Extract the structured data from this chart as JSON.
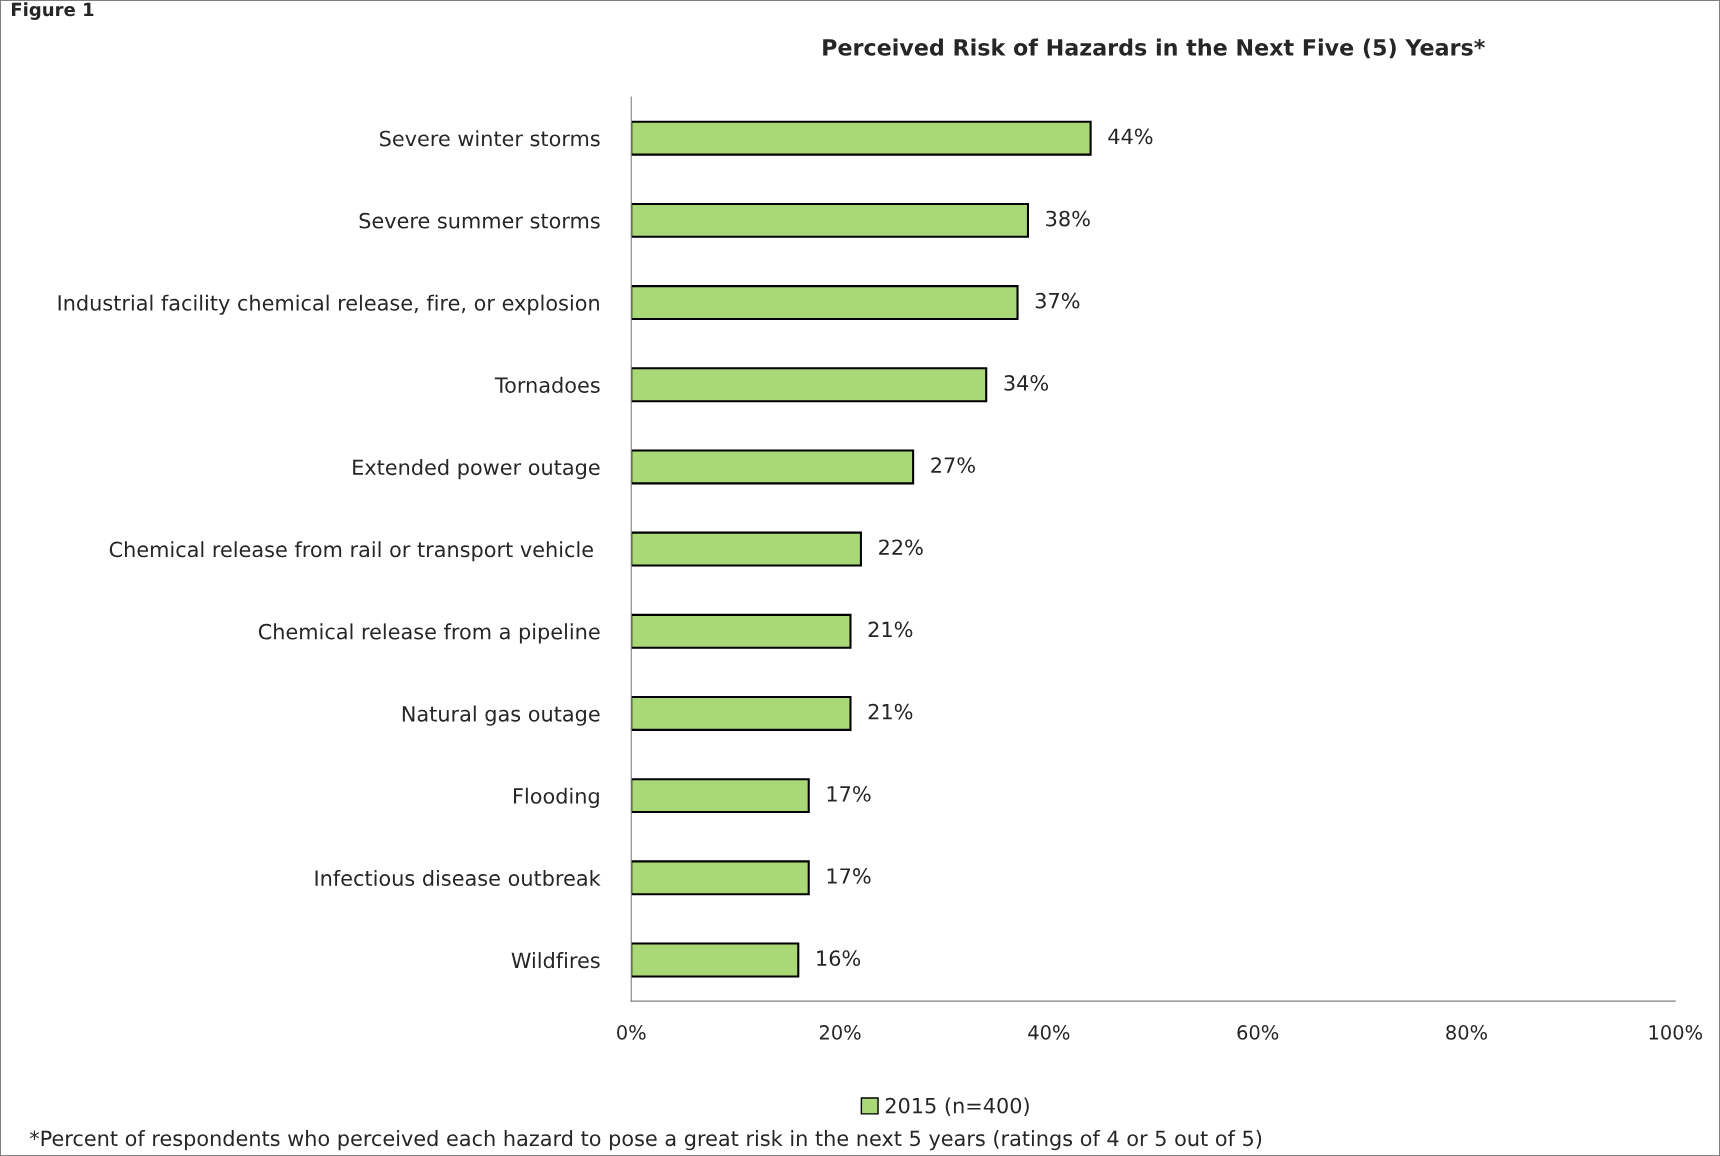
{
  "chart_data": {
    "type": "bar",
    "orientation": "horizontal",
    "title": "Perceived Risk of Hazards in the Next Five (5) Years*",
    "categories": [
      "Severe winter storms",
      "Severe summer storms",
      "Industrial facility chemical release, fire, or explosion",
      "Tornadoes",
      "Extended power outage",
      "Chemical release from rail or transport vehicle ",
      "Chemical release from a pipeline",
      "Natural gas outage",
      "Flooding",
      "Infectious disease outbreak",
      "Wildfires"
    ],
    "series": [
      {
        "name": "2015 (n=400)",
        "color": "#a9d977",
        "values": [
          44,
          38,
          37,
          34,
          27,
          22,
          21,
          21,
          17,
          17,
          16
        ],
        "value_labels": [
          "44%",
          "38%",
          "37%",
          "34%",
          "27%",
          "22%",
          "21%",
          "21%",
          "17%",
          "17%",
          "16%"
        ]
      }
    ],
    "xlim": [
      0,
      100
    ],
    "xticks": [
      {
        "value": 0,
        "label": "0%"
      },
      {
        "value": 20,
        "label": "20%"
      },
      {
        "value": 40,
        "label": "40%"
      },
      {
        "value": 60,
        "label": "60%"
      },
      {
        "value": 80,
        "label": "80%"
      },
      {
        "value": 100,
        "label": "100%"
      }
    ],
    "grid": false,
    "legend": "bottom",
    "annotations": [
      "Figure 1",
      "*Percent of respondents who perceived each hazard to pose a great risk in the next 5 years (ratings of 4 or 5 out of 5)"
    ]
  }
}
